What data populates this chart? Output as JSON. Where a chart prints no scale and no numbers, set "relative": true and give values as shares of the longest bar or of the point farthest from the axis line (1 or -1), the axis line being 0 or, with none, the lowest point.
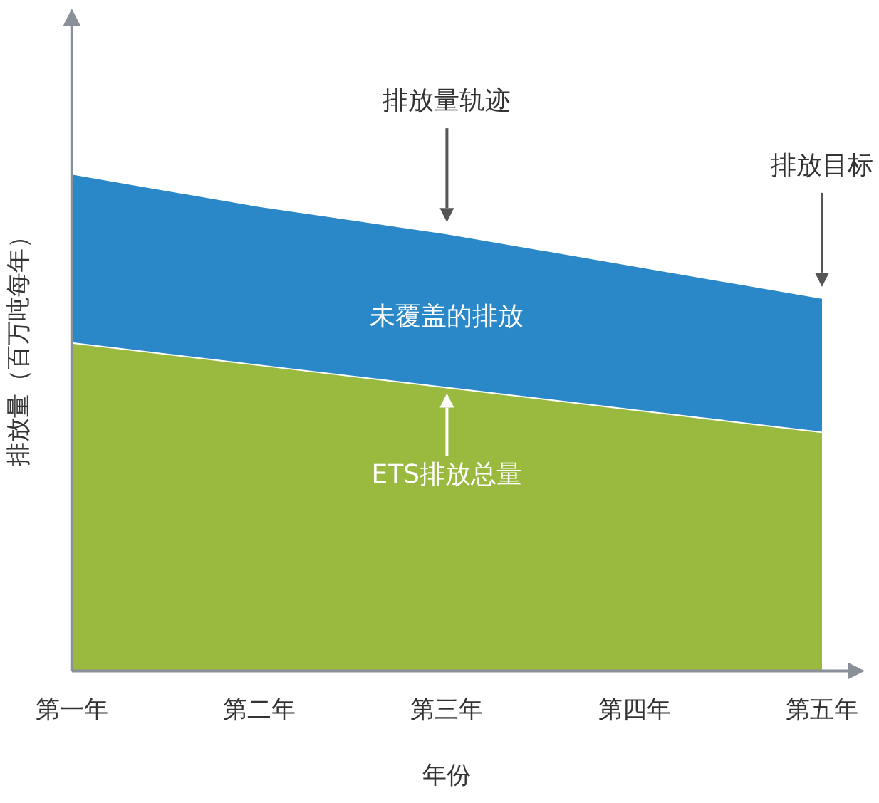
{
  "chart_data": {
    "type": "area",
    "stacked": true,
    "relative": true,
    "xlabel": "年份",
    "ylabel": "排放量（百万吨每年）",
    "categories": [
      "第一年",
      "第二年",
      "第三年",
      "第四年",
      "第五年"
    ],
    "series": [
      {
        "name": "ETS排放总量",
        "color": "#99b93f",
        "values": [
          0.66,
          0.615,
          0.57,
          0.525,
          0.48
        ]
      },
      {
        "name": "未覆盖的排放",
        "color": "#2a87c8",
        "values": [
          0.34,
          0.32,
          0.31,
          0.29,
          0.27
        ]
      }
    ],
    "annotations": [
      "排放量轨迹",
      "排放目标"
    ],
    "grid": false
  }
}
